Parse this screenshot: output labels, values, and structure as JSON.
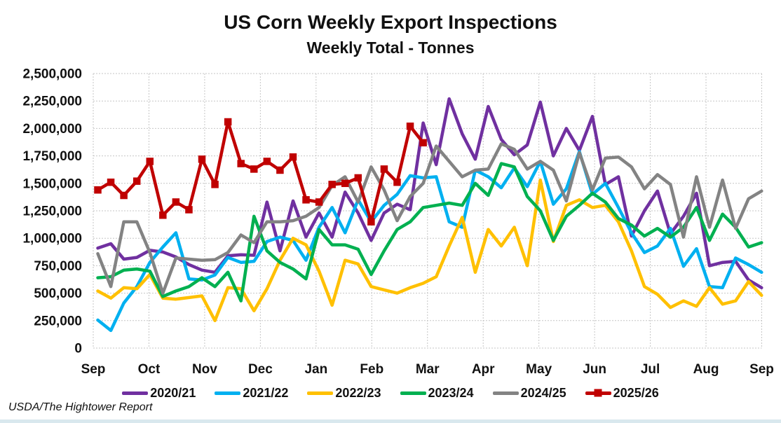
{
  "header": {
    "title": "US Corn Weekly Export Inspections",
    "subtitle": "Weekly Total - Tonnes"
  },
  "footer": {
    "source": "USDA/The Hightower Report"
  },
  "colors": {
    "background": "#FFFFFF",
    "gridline": "#C6C6C6",
    "axis_text": "#111111",
    "bottom_strip": "#D9E8EE"
  },
  "chart_data": {
    "type": "line",
    "title": "US Corn Weekly Export Inspections",
    "subtitle": "Weekly Total - Tonnes",
    "grid": true,
    "legend_position": "bottom",
    "x_axis": {
      "unit": "weeks",
      "weeks_per_season": 52,
      "tick_labels": [
        "Sep",
        "Oct",
        "Nov",
        "Dec",
        "Jan",
        "Feb",
        "Mar",
        "Apr",
        "May",
        "Jun",
        "Jul",
        "Aug",
        "Sep"
      ]
    },
    "y_axis": {
      "min": 0,
      "max": 2500000,
      "tick_interval": 250000,
      "tick_labels": [
        "0",
        "250,000",
        "500,000",
        "750,000",
        "1,000,000",
        "1,250,000",
        "1,500,000",
        "1,750,000",
        "2,000,000",
        "2,250,000",
        "2,500,000"
      ]
    },
    "series": [
      {
        "name": "2020/21",
        "color": "#7030A0",
        "marker": "none",
        "values": [
          910000,
          950000,
          810000,
          825000,
          890000,
          875000,
          830000,
          760000,
          710000,
          690000,
          840000,
          850000,
          845000,
          1330000,
          885000,
          1340000,
          1010000,
          1230000,
          1010000,
          1420000,
          1230000,
          980000,
          1230000,
          1310000,
          1260000,
          2050000,
          1670000,
          2270000,
          1950000,
          1720000,
          2200000,
          1900000,
          1760000,
          1850000,
          2240000,
          1750000,
          2000000,
          1800000,
          2110000,
          1490000,
          1560000,
          1020000,
          1250000,
          1430000,
          1040000,
          1200000,
          1410000,
          750000,
          780000,
          790000,
          620000,
          550000
        ]
      },
      {
        "name": "2021/22",
        "color": "#00B0F0",
        "marker": "none",
        "values": [
          255000,
          160000,
          410000,
          560000,
          780000,
          920000,
          1050000,
          630000,
          620000,
          665000,
          825000,
          780000,
          790000,
          970000,
          1010000,
          980000,
          800000,
          1100000,
          1280000,
          1050000,
          1350000,
          1150000,
          1300000,
          1400000,
          1570000,
          1550000,
          1560000,
          1150000,
          1100000,
          1620000,
          1560000,
          1460000,
          1640000,
          1470000,
          1700000,
          1310000,
          1450000,
          1790000,
          1400000,
          1500000,
          1280000,
          1050000,
          870000,
          930000,
          1090000,
          745000,
          905000,
          560000,
          550000,
          820000,
          760000,
          690000
        ]
      },
      {
        "name": "2022/23",
        "color": "#FFC000",
        "marker": "none",
        "values": [
          520000,
          455000,
          550000,
          540000,
          670000,
          455000,
          445000,
          460000,
          475000,
          250000,
          550000,
          540000,
          340000,
          540000,
          800000,
          1000000,
          940000,
          700000,
          390000,
          800000,
          766000,
          560000,
          530000,
          500000,
          550000,
          590000,
          650000,
          930000,
          1190000,
          690000,
          1080000,
          930000,
          1100000,
          750000,
          1530000,
          970000,
          1300000,
          1350000,
          1280000,
          1300000,
          1150000,
          885000,
          560000,
          490000,
          370000,
          430000,
          380000,
          550000,
          400000,
          430000,
          605000,
          480000
        ]
      },
      {
        "name": "2023/24",
        "color": "#00B050",
        "marker": "none",
        "values": [
          640000,
          650000,
          710000,
          720000,
          700000,
          470000,
          520000,
          560000,
          640000,
          560000,
          690000,
          430000,
          1200000,
          885000,
          780000,
          720000,
          630000,
          1080000,
          940000,
          940000,
          900000,
          670000,
          885000,
          1080000,
          1150000,
          1280000,
          1300000,
          1320000,
          1300000,
          1500000,
          1390000,
          1680000,
          1650000,
          1380000,
          1250000,
          980000,
          1200000,
          1300000,
          1410000,
          1330000,
          1180000,
          1120000,
          1020000,
          1090000,
          1010000,
          1100000,
          1280000,
          980000,
          1220000,
          1100000,
          920000,
          960000
        ]
      },
      {
        "name": "2024/25",
        "color": "#838383",
        "marker": "none",
        "values": [
          860000,
          560000,
          1150000,
          1150000,
          870000,
          500000,
          820000,
          810000,
          800000,
          805000,
          870000,
          1030000,
          960000,
          1150000,
          1150000,
          1160000,
          1200000,
          1280000,
          1480000,
          1560000,
          1330000,
          1650000,
          1440000,
          1160000,
          1380000,
          1500000,
          1840000,
          1700000,
          1560000,
          1620000,
          1630000,
          1860000,
          1810000,
          1630000,
          1700000,
          1620000,
          1340000,
          1780000,
          1440000,
          1730000,
          1740000,
          1650000,
          1450000,
          1580000,
          1490000,
          1010000,
          1560000,
          1100000,
          1530000,
          1090000,
          1360000,
          1430000
        ]
      },
      {
        "name": "2025/26",
        "color": "#C00000",
        "marker": "square",
        "values": [
          1440000,
          1510000,
          1390000,
          1520000,
          1700000,
          1210000,
          1330000,
          1260000,
          1720000,
          1490000,
          2060000,
          1680000,
          1630000,
          1700000,
          1620000,
          1740000,
          1350000,
          1330000,
          1490000,
          1500000,
          1550000,
          1150000,
          1630000,
          1510000,
          2020000,
          1870000
        ]
      }
    ]
  }
}
